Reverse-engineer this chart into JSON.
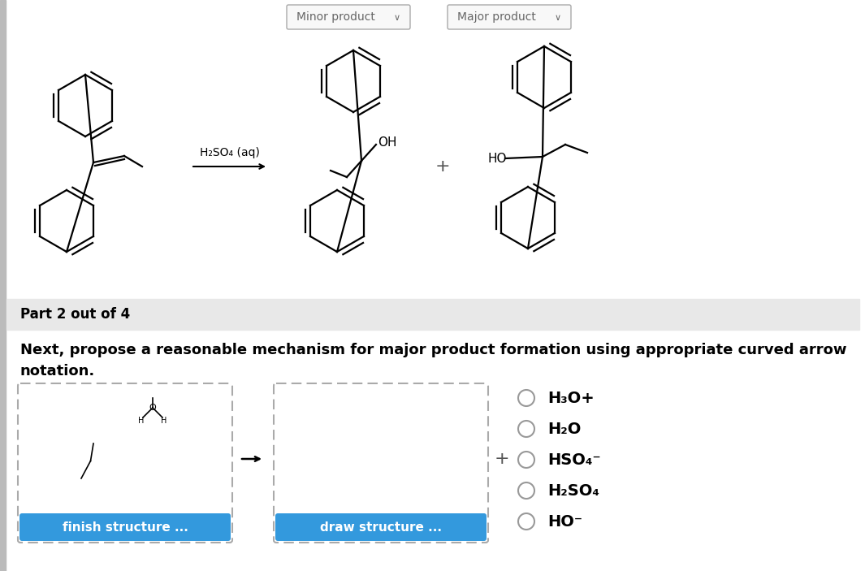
{
  "bg_color": "#ffffff",
  "part_bar_color": "#e8e8e8",
  "part_bar_text": "Part 2 out of 4",
  "instruction_text_line1": "Next, propose a reasonable mechanism for major product formation using appropriate curved arrow",
  "instruction_text_line2": "notation.",
  "minor_label": "Minor product",
  "major_label": "Major product",
  "reagent_label": "H₂SO₄ (aq)",
  "oh_label": "OH",
  "ho_label": "HO",
  "dropdown_text_color": "#666666",
  "dashed_box_color": "#aaaaaa",
  "finish_btn_color": "#3399dd",
  "draw_btn_color": "#3399dd",
  "btn_text_color": "#ffffff",
  "finish_btn_text": "finish structure ...",
  "draw_btn_text": "draw structure ...",
  "radio_options": [
    "H₃O+",
    "H₂O",
    "HSO₄⁻",
    "H₂SO₄",
    "HO⁻"
  ],
  "sidebar_color": "#bbbbbb"
}
